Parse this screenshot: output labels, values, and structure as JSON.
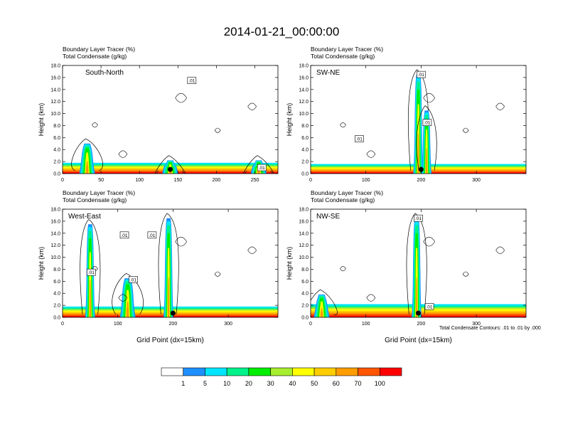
{
  "main_title": "2014-01-21_00:00:00",
  "panel_subtitle_1": "Boundary Layer Tracer   (%)",
  "panel_subtitle_2": "Total Condensate   (g/kg)",
  "y_axis_label": "Height (km)",
  "x_axis_label": "Grid Point (dx=15km)",
  "contour_note": "Total Condensate Contours: .01 to .01 by .000",
  "contour_label": ".01",
  "colorbar": {
    "colors": [
      "#ffffff",
      "#1e8fff",
      "#00e5ff",
      "#00f28a",
      "#00ee00",
      "#a6ee2e",
      "#ffff00",
      "#ffcc00",
      "#ff9c00",
      "#ff5500",
      "#ff0000"
    ],
    "labels": [
      "1",
      "5",
      "10",
      "20",
      "30",
      "40",
      "50",
      "60",
      "70",
      "100"
    ]
  },
  "chart_data": [
    {
      "type": "heatmap",
      "title": "South-North",
      "xlabel": "",
      "ylabel": "Height (km)",
      "xlim": [
        0,
        280
      ],
      "ylim": [
        0,
        18
      ],
      "x_ticks": [
        "0",
        "50",
        "100",
        "150",
        "200",
        "250"
      ],
      "y_ticks": [
        "0.0",
        "2.0",
        "4.0",
        "6.0",
        "8.0",
        "10.0",
        "12.0",
        "14.0",
        "16.0",
        "18.0"
      ],
      "boundary_layer_top_km": 1.8,
      "peaks": [
        {
          "x": 32,
          "top_km": 5.0
        },
        {
          "x": 140,
          "top_km": 2.2
        },
        {
          "x": 255,
          "top_km": 2.2
        }
      ],
      "marker_x": 140,
      "contour_label_positions": [
        {
          "x": 168,
          "y_km": 15.5
        },
        {
          "x": 259,
          "y_km": 1.0
        }
      ]
    },
    {
      "type": "heatmap",
      "title": "SW-NE",
      "xlabel": "",
      "ylabel": "Height (km)",
      "xlim": [
        0,
        390
      ],
      "ylim": [
        0,
        18
      ],
      "x_ticks": [
        "0",
        "100",
        "200",
        "300"
      ],
      "y_ticks": [
        "0.0",
        "2.0",
        "4.0",
        "6.0",
        "8.0",
        "10.0",
        "12.0",
        "14.0",
        "16.0",
        "18.0"
      ],
      "boundary_layer_top_km": 1.6,
      "peaks": [
        {
          "x": 195,
          "top_km": 16.5
        },
        {
          "x": 210,
          "top_km": 10.5
        }
      ],
      "marker_x": 200,
      "contour_label_positions": [
        {
          "x": 200,
          "y_km": 16.5
        },
        {
          "x": 88,
          "y_km": 5.8
        },
        {
          "x": 211,
          "y_km": 8.5
        }
      ]
    },
    {
      "type": "heatmap",
      "title": "West-East",
      "xlabel": "Grid Point (dx=15km)",
      "ylabel": "Height (km)",
      "xlim": [
        0,
        390
      ],
      "ylim": [
        0,
        18
      ],
      "x_ticks": [
        "0",
        "100",
        "200",
        "300"
      ],
      "y_ticks": [
        "0.0",
        "2.0",
        "4.0",
        "6.0",
        "8.0",
        "10.0",
        "12.0",
        "14.0",
        "16.0",
        "18.0"
      ],
      "boundary_layer_top_km": 1.8,
      "peaks": [
        {
          "x": 50,
          "top_km": 15.5
        },
        {
          "x": 118,
          "top_km": 6.5
        },
        {
          "x": 192,
          "top_km": 16.5
        }
      ],
      "marker_x": 200,
      "contour_label_positions": [
        {
          "x": 112,
          "y_km": 13.7
        },
        {
          "x": 52,
          "y_km": 7.5
        },
        {
          "x": 128,
          "y_km": 6.3
        },
        {
          "x": 162,
          "y_km": 13.7
        }
      ]
    },
    {
      "type": "heatmap",
      "title": "NW-SE",
      "xlabel": "Grid Point (dx=15km)",
      "ylabel": "Height (km)",
      "xlim": [
        0,
        390
      ],
      "ylim": [
        0,
        18
      ],
      "x_ticks": [
        "0",
        "100",
        "200",
        "300"
      ],
      "y_ticks": [
        "0.0",
        "2.0",
        "4.0",
        "6.0",
        "8.0",
        "10.0",
        "12.0",
        "14.0",
        "16.0",
        "18.0"
      ],
      "boundary_layer_top_km": 2.2,
      "peaks": [
        {
          "x": 20,
          "top_km": 3.8
        },
        {
          "x": 192,
          "top_km": 16.5
        }
      ],
      "marker_x": 195,
      "contour_label_positions": [
        {
          "x": 195,
          "y_km": 16.5
        },
        {
          "x": 215,
          "y_km": 1.8
        }
      ]
    }
  ]
}
